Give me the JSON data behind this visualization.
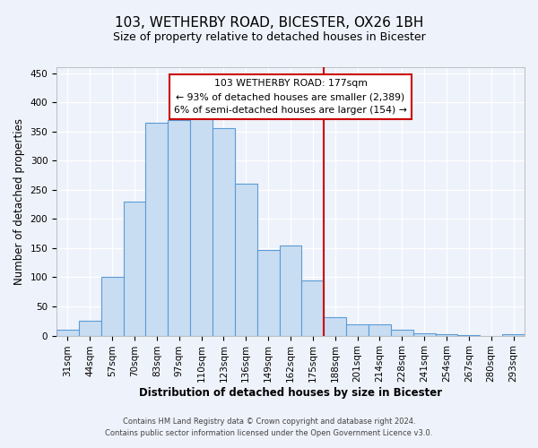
{
  "title": "103, WETHERBY ROAD, BICESTER, OX26 1BH",
  "subtitle": "Size of property relative to detached houses in Bicester",
  "xlabel": "Distribution of detached houses by size in Bicester",
  "ylabel": "Number of detached properties",
  "bar_labels": [
    "31sqm",
    "44sqm",
    "57sqm",
    "70sqm",
    "83sqm",
    "97sqm",
    "110sqm",
    "123sqm",
    "136sqm",
    "149sqm",
    "162sqm",
    "175sqm",
    "188sqm",
    "201sqm",
    "214sqm",
    "228sqm",
    "241sqm",
    "254sqm",
    "267sqm",
    "280sqm",
    "293sqm"
  ],
  "bar_values": [
    10,
    25,
    100,
    230,
    365,
    370,
    375,
    355,
    260,
    147,
    155,
    95,
    32,
    20,
    20,
    10,
    4,
    2,
    1,
    0,
    3
  ],
  "bar_color": "#c9ddf2",
  "bar_edge_color": "#5b9bd5",
  "vline_x_index": 11,
  "vline_color": "#cc0000",
  "annotation_title": "103 WETHERBY ROAD: 177sqm",
  "annotation_line1": "← 93% of detached houses are smaller (2,389)",
  "annotation_line2": "6% of semi-detached houses are larger (154) →",
  "annotation_box_color": "#ffffff",
  "annotation_box_edge_color": "#cc0000",
  "ylim": [
    0,
    460
  ],
  "yticks": [
    0,
    50,
    100,
    150,
    200,
    250,
    300,
    350,
    400,
    450
  ],
  "footer1": "Contains HM Land Registry data © Crown copyright and database right 2024.",
  "footer2": "Contains public sector information licensed under the Open Government Licence v3.0.",
  "background_color": "#eef2fa",
  "grid_color": "#ffffff",
  "title_fontsize": 11,
  "subtitle_fontsize": 9,
  "axis_label_fontsize": 8.5,
  "tick_fontsize": 7.5,
  "footer_fontsize": 6
}
